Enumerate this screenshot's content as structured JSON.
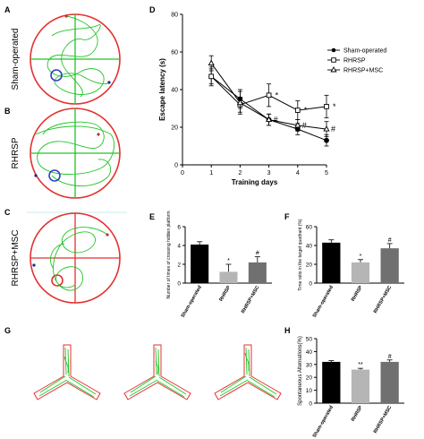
{
  "panel_letters": {
    "a": "A",
    "b": "B",
    "c": "C",
    "d": "D",
    "e": "E",
    "f": "F",
    "g": "G",
    "h": "H"
  },
  "group_labels": [
    "Sham-operated",
    "RHRSP",
    "RHRSP+MSC"
  ],
  "colors": {
    "sham": "#000000",
    "rhrsp": "#b5b5b5",
    "msc": "#707070",
    "track": "#22c428",
    "pool": "#e53030",
    "platform": "#2f3fc8"
  },
  "chart_data": [
    {
      "id": "D",
      "type": "line",
      "xlabel": "Training days",
      "ylabel": "Escape latency (s)",
      "x": [
        1,
        2,
        3,
        4,
        5
      ],
      "xlim": [
        0,
        5
      ],
      "ylim": [
        0,
        80
      ],
      "xticks": [
        0,
        1,
        2,
        3,
        4,
        5
      ],
      "yticks": [
        0,
        20,
        40,
        60,
        80
      ],
      "legend_position": "top-right",
      "series": [
        {
          "name": "Sham-operated",
          "marker": "circle",
          "values": [
            47,
            35,
            24,
            19,
            13
          ],
          "err": [
            5,
            5,
            3,
            3,
            3
          ]
        },
        {
          "name": "RHRSP",
          "marker": "square",
          "values": [
            47,
            32,
            37,
            29,
            31
          ],
          "err": [
            4,
            4,
            6,
            5,
            6
          ]
        },
        {
          "name": "RHRSP+MSC",
          "marker": "triangle",
          "values": [
            54,
            33,
            24,
            21,
            19
          ],
          "err": [
            4,
            6,
            3,
            3,
            4
          ]
        }
      ],
      "annotations": [
        {
          "x": 3,
          "y": 37,
          "text": "*"
        },
        {
          "x": 4,
          "y": 29,
          "text": "*"
        },
        {
          "x": 5,
          "y": 31,
          "text": "*"
        },
        {
          "x": 3,
          "y": 24,
          "text": "#"
        },
        {
          "x": 4,
          "y": 21,
          "text": "#"
        },
        {
          "x": 5,
          "y": 19,
          "text": "#"
        }
      ]
    },
    {
      "id": "E",
      "type": "bar",
      "ylabel": "Number of times of crossing hidden platform",
      "categories": [
        "Sham-operated",
        "RHRSP",
        "RHRSP+MSC"
      ],
      "values": [
        4.1,
        1.2,
        2.2
      ],
      "err": [
        0.3,
        0.8,
        0.6
      ],
      "ylim": [
        0,
        6
      ],
      "yticks": [
        0,
        2,
        4,
        6
      ],
      "marks": [
        "",
        "*",
        "#"
      ]
    },
    {
      "id": "F",
      "type": "bar",
      "ylabel": "Time ratio in the target quadrant (%)",
      "categories": [
        "Sham-operated",
        "RHRSP",
        "RHRSP+MSC"
      ],
      "values": [
        43,
        22,
        37
      ],
      "err": [
        3,
        3,
        5
      ],
      "ylim": [
        0,
        60
      ],
      "yticks": [
        0,
        20,
        40,
        60
      ],
      "marks": [
        "",
        "*",
        "#"
      ]
    },
    {
      "id": "H",
      "type": "bar",
      "ylabel": "Spontaneous Alternations(%)",
      "categories": [
        "Sham-operated",
        "RHRSP",
        "RHRSP+MSC"
      ],
      "values": [
        32,
        26,
        32
      ],
      "err": [
        1,
        1,
        1.5
      ],
      "ylim": [
        0,
        50
      ],
      "yticks": [
        0,
        10,
        20,
        30,
        40,
        50
      ],
      "marks": [
        "",
        "**",
        "#"
      ]
    }
  ]
}
